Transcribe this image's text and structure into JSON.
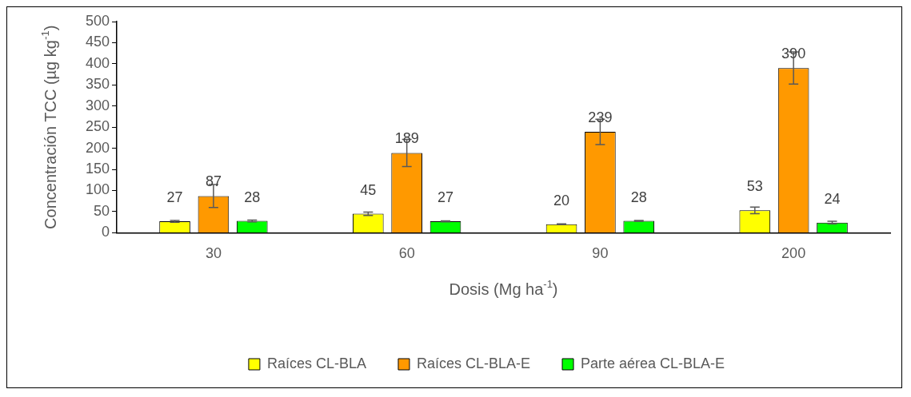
{
  "chart_data": {
    "type": "bar",
    "xlabel": "Dosis (Mg ha$^{-1}$)",
    "ylabel": "Concentración TCC (µg kg$^{-1}$)",
    "categories": [
      "30",
      "60",
      "90",
      "200"
    ],
    "series": [
      {
        "name": "Raíces CL-BLA",
        "color": "#ffff00",
        "values": [
          27,
          45,
          20,
          53
        ],
        "errors": [
          2,
          4,
          1,
          8
        ]
      },
      {
        "name": "Raíces CL-BLA-E",
        "color": "#ff9900",
        "values": [
          87,
          189,
          239,
          390
        ],
        "errors": [
          27,
          32,
          30,
          38
        ]
      },
      {
        "name": "Parte aérea CL-BLA-E",
        "color": "#00ff00",
        "values": [
          28,
          27,
          28,
          24
        ],
        "errors": [
          2,
          1,
          1,
          3
        ]
      }
    ],
    "ylim": [
      0,
      500
    ],
    "yticks": [
      0,
      50,
      100,
      150,
      200,
      250,
      300,
      350,
      400,
      450,
      500
    ],
    "data_labels": true,
    "grid": false,
    "legend": "bottom"
  }
}
